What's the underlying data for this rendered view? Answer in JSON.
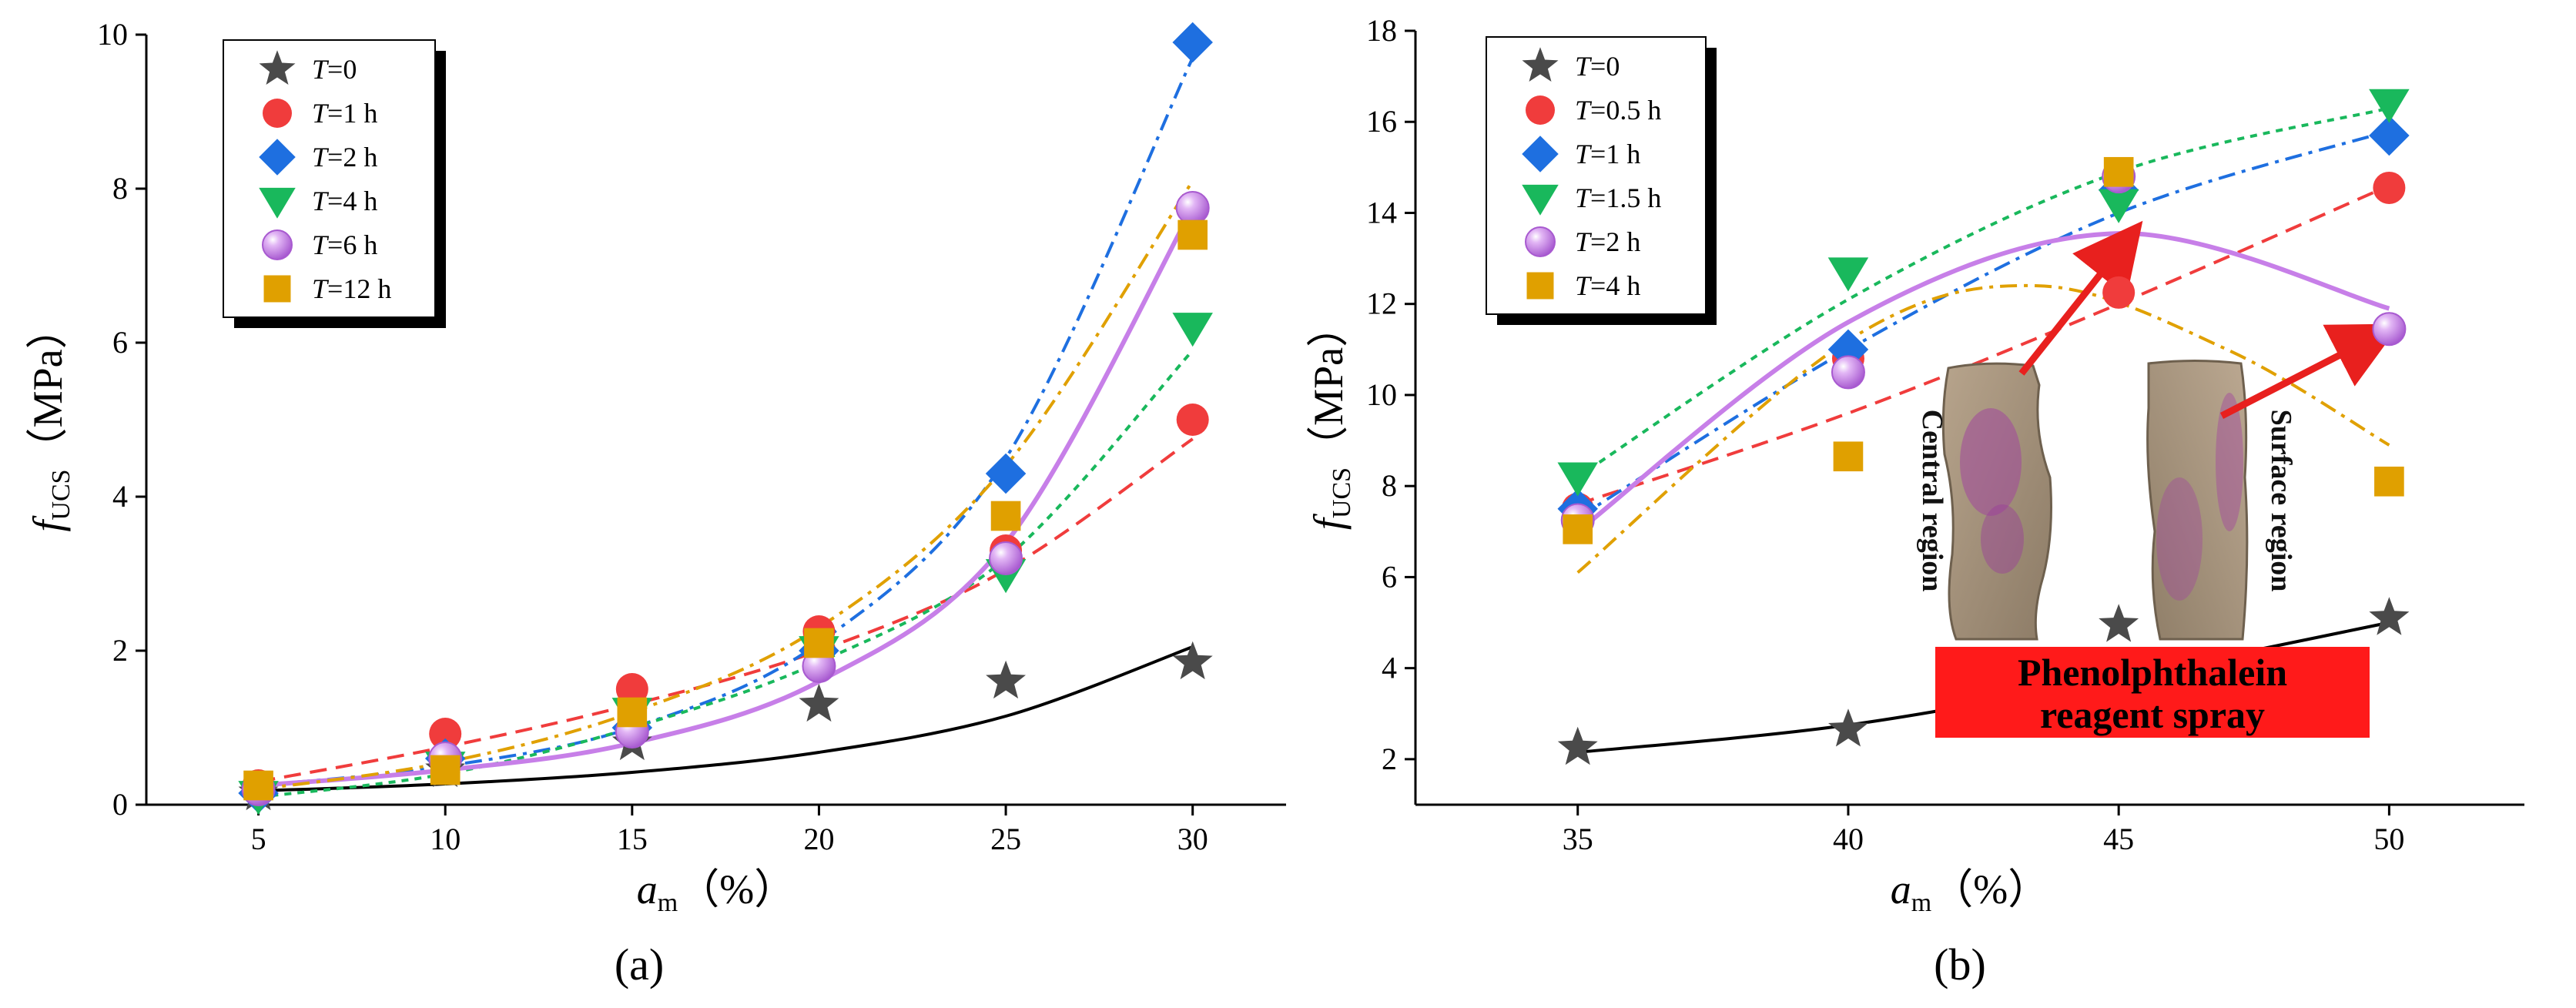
{
  "chart_data": [
    {
      "type": "scatter",
      "panel_label": "(a)",
      "xlabel": "a",
      "xlabel_sub": "m",
      "xlabel_unit": "（%）",
      "ylabel": "f",
      "ylabel_sub": "UCS",
      "ylabel_unit": "（MPa）",
      "xlim": [
        2,
        32.5
      ],
      "ylim": [
        0,
        10
      ],
      "xticks": [
        5,
        10,
        15,
        20,
        25,
        30
      ],
      "yticks": [
        0,
        2,
        4,
        6,
        8,
        10
      ],
      "legend_position": "top-left",
      "series": [
        {
          "name": "=0",
          "name_italic": "T",
          "color": "#4a4a4a",
          "marker": "star",
          "line": "solid",
          "x": [
            5,
            10,
            15,
            20,
            25,
            30
          ],
          "y": [
            0.15,
            0.45,
            0.8,
            1.3,
            1.6,
            1.85
          ],
          "fit": [
            [
              5,
              0.18
            ],
            [
              10,
              0.27
            ],
            [
              15,
              0.42
            ],
            [
              20,
              0.68
            ],
            [
              25,
              1.15
            ],
            [
              30,
              2.05
            ]
          ]
        },
        {
          "name": "=1 h",
          "name_italic": "T",
          "color": "#f03c3c",
          "marker": "circle",
          "line": "dashed",
          "x": [
            5,
            10,
            15,
            20,
            25,
            30
          ],
          "y": [
            0.25,
            0.92,
            1.5,
            2.25,
            3.3,
            5.0
          ],
          "fit": [
            [
              5,
              0.3
            ],
            [
              10,
              0.75
            ],
            [
              15,
              1.3
            ],
            [
              20,
              2.0
            ],
            [
              25,
              3.05
            ],
            [
              30,
              4.75
            ]
          ]
        },
        {
          "name": "=2 h",
          "name_italic": "T",
          "color": "#1e6fe0",
          "marker": "diamond",
          "line": "dashdot",
          "x": [
            5,
            10,
            15,
            20,
            25,
            30
          ],
          "y": [
            0.15,
            0.6,
            1.0,
            2.0,
            4.3,
            9.9
          ],
          "fit": [
            [
              5,
              0.25
            ],
            [
              10,
              0.5
            ],
            [
              15,
              1.0
            ],
            [
              20,
              2.1
            ],
            [
              25,
              4.5
            ],
            [
              30,
              9.7
            ]
          ]
        },
        {
          "name": "=4 h",
          "name_italic": "T",
          "color": "#19b85c",
          "marker": "triangle-down",
          "line": "dotted",
          "x": [
            5,
            10,
            15,
            20,
            25,
            30
          ],
          "y": [
            0.12,
            0.5,
            1.2,
            2.0,
            3.0,
            6.2
          ],
          "fit": [
            [
              5,
              0.1
            ],
            [
              10,
              0.4
            ],
            [
              15,
              1.0
            ],
            [
              20,
              1.85
            ],
            [
              25,
              3.2
            ],
            [
              30,
              5.9
            ]
          ]
        },
        {
          "name": "=6 h",
          "name_italic": "T",
          "color": "#c77fe8",
          "marker": "sphere",
          "line": "solid",
          "x": [
            5,
            10,
            15,
            20,
            25,
            30
          ],
          "y": [
            0.2,
            0.6,
            0.95,
            1.8,
            3.2,
            7.75
          ],
          "fit": [
            [
              5,
              0.25
            ],
            [
              10,
              0.45
            ],
            [
              15,
              0.8
            ],
            [
              20,
              1.6
            ],
            [
              25,
              3.4
            ],
            [
              30,
              7.75
            ]
          ]
        },
        {
          "name": "=12 h",
          "name_italic": "T",
          "color": "#e0a000",
          "marker": "square",
          "line": "dashdot",
          "x": [
            5,
            10,
            15,
            20,
            25,
            30
          ],
          "y": [
            0.25,
            0.45,
            1.2,
            2.1,
            3.75,
            7.4
          ],
          "fit": [
            [
              5,
              0.2
            ],
            [
              10,
              0.55
            ],
            [
              15,
              1.2
            ],
            [
              20,
              2.3
            ],
            [
              25,
              4.4
            ],
            [
              30,
              8.1
            ]
          ]
        }
      ]
    },
    {
      "type": "scatter",
      "panel_label": "(b)",
      "xlabel": "a",
      "xlabel_sub": "m",
      "xlabel_unit": "（%）",
      "ylabel": "f",
      "ylabel_sub": "UCS",
      "ylabel_unit": "（MPa）",
      "xlim": [
        32,
        52.5
      ],
      "ylim": [
        1,
        18
      ],
      "xticks": [
        35,
        40,
        45,
        50
      ],
      "yticks": [
        2,
        4,
        6,
        8,
        10,
        12,
        14,
        16,
        18
      ],
      "legend_position": "top-left",
      "series": [
        {
          "name": "=0",
          "name_italic": "T",
          "color": "#4a4a4a",
          "marker": "star",
          "line": "solid",
          "x": [
            35,
            40,
            45,
            50
          ],
          "y": [
            2.25,
            2.65,
            4.95,
            5.1
          ],
          "fit": [
            [
              35,
              2.15
            ],
            [
              40,
              2.75
            ],
            [
              45,
              3.8
            ],
            [
              50,
              5.0
            ]
          ]
        },
        {
          "name": "=0.5 h",
          "name_italic": "T",
          "color": "#f03c3c",
          "marker": "circle",
          "line": "dashed",
          "x": [
            35,
            40,
            45,
            50
          ],
          "y": [
            7.5,
            10.8,
            12.25,
            14.55
          ],
          "fit": [
            [
              35,
              7.6
            ],
            [
              40,
              9.6
            ],
            [
              45,
              12.0
            ],
            [
              50,
              14.6
            ]
          ]
        },
        {
          "name": "=1 h",
          "name_italic": "T",
          "color": "#1e6fe0",
          "marker": "diamond",
          "line": "dashdot",
          "x": [
            35,
            40,
            45,
            50
          ],
          "y": [
            7.5,
            11.0,
            14.5,
            15.7
          ],
          "fit": [
            [
              35,
              7.3
            ],
            [
              40,
              11.0
            ],
            [
              45,
              14.0
            ],
            [
              50,
              15.8
            ]
          ]
        },
        {
          "name": "=1.5 h",
          "name_italic": "T",
          "color": "#19b85c",
          "marker": "triangle-down",
          "line": "dotted",
          "x": [
            35,
            40,
            45,
            50
          ],
          "y": [
            8.2,
            12.7,
            14.2,
            16.4
          ],
          "fit": [
            [
              35,
              8.2
            ],
            [
              40,
              12.1
            ],
            [
              45,
              14.9
            ],
            [
              50,
              16.3
            ]
          ]
        },
        {
          "name": "=2 h",
          "name_italic": "T",
          "color": "#c77fe8",
          "marker": "sphere",
          "line": "solid",
          "x": [
            35,
            40,
            45,
            50
          ],
          "y": [
            7.25,
            10.5,
            14.8,
            11.45
          ],
          "fit": [
            [
              35,
              7.0
            ],
            [
              40,
              11.6
            ],
            [
              45,
              13.55
            ],
            [
              50,
              11.9
            ]
          ]
        },
        {
          "name": "=4 h",
          "name_italic": "T",
          "color": "#e0a000",
          "marker": "square",
          "line": "dashdot",
          "x": [
            35,
            40,
            45,
            50
          ],
          "y": [
            7.05,
            8.65,
            14.9,
            8.1
          ],
          "fit": [
            [
              35,
              6.1
            ],
            [
              40,
              11.2
            ],
            [
              43.5,
              12.4
            ],
            [
              47,
              11.0
            ],
            [
              50,
              8.9
            ]
          ]
        }
      ]
    }
  ],
  "photo_annotation": {
    "left_label": "Central region",
    "right_label": "Surface region",
    "banner_line1": "Phenolphthalein",
    "banner_line2": "reagent spray",
    "banner_color": "#ff1a1a",
    "arrow_color": "#e8201e"
  }
}
